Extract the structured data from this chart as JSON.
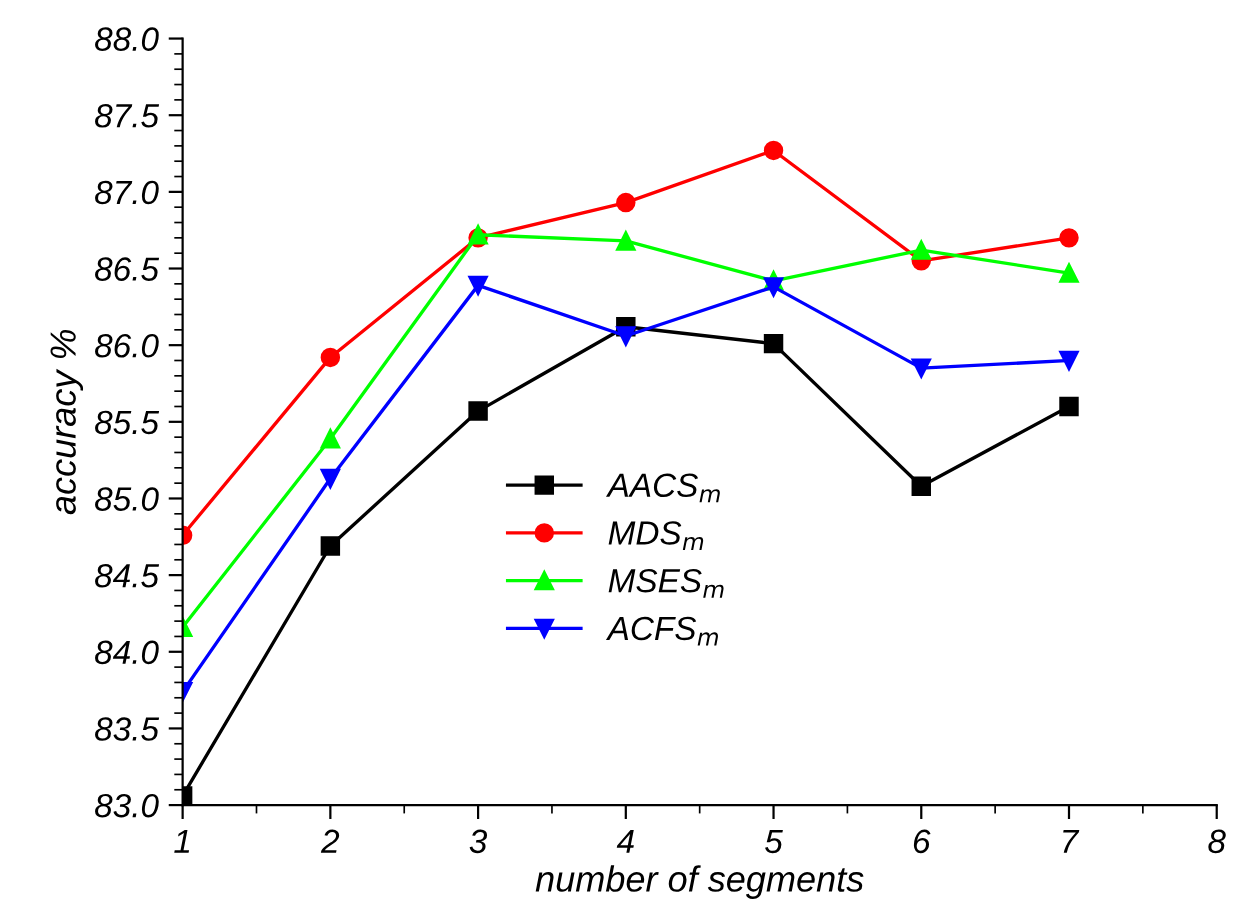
{
  "chart_data": {
    "type": "line",
    "xlabel": "number of segments",
    "ylabel": "accuracy %",
    "x": [
      1,
      2,
      3,
      4,
      5,
      6,
      7
    ],
    "series": [
      {
        "name": "AACS$_{m}$",
        "color": "#000000",
        "marker": "square",
        "values": [
          83.06,
          84.69,
          85.57,
          86.12,
          86.01,
          85.08,
          85.6
        ]
      },
      {
        "name": "MDS$_{m}$",
        "color": "#ff0000",
        "marker": "circle",
        "values": [
          84.76,
          85.92,
          86.7,
          86.93,
          87.27,
          86.55,
          86.7
        ]
      },
      {
        "name": "MSES$_{m}$",
        "color": "#00ff00",
        "marker": "triangle",
        "values": [
          84.16,
          85.39,
          86.72,
          86.68,
          86.42,
          86.62,
          86.47
        ]
      },
      {
        "name": "ACFS$_{m}$",
        "color": "#0000ff",
        "marker": "triangle_down",
        "values": [
          83.74,
          85.13,
          86.39,
          86.06,
          86.38,
          85.85,
          85.9
        ]
      }
    ],
    "xlim": [
      1,
      8
    ],
    "xticks": [
      1,
      2,
      3,
      4,
      5,
      6,
      7,
      8
    ],
    "ylim": [
      83.0,
      88.0
    ],
    "yticks": [
      {
        "value": 83.0,
        "label": "83.0"
      },
      {
        "value": 83.5,
        "label": "83.5"
      },
      {
        "value": 84.0,
        "label": "84.0"
      },
      {
        "value": 84.5,
        "label": "84.5"
      },
      {
        "value": 85.0,
        "label": "85.0"
      },
      {
        "value": 85.5,
        "label": "85.5"
      },
      {
        "value": 86.0,
        "label": "86.0"
      },
      {
        "value": 86.5,
        "label": "86.5"
      },
      {
        "value": 87.0,
        "label": "87.0"
      },
      {
        "value": 87.5,
        "label": "87.5"
      },
      {
        "value": 88.0,
        "label": "88.0"
      }
    ],
    "grid": false,
    "legend": "center",
    "line_style": "solid"
  }
}
